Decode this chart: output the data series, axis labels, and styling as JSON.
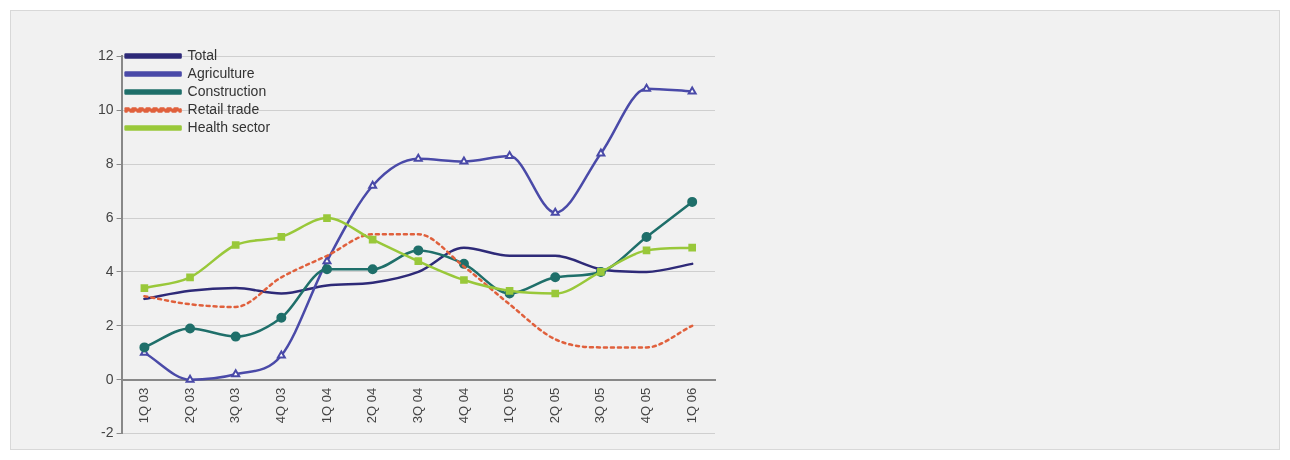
{
  "chart_data": {
    "type": "line",
    "categories": [
      "1Q 03",
      "2Q 03",
      "3Q 03",
      "4Q 03",
      "1Q 04",
      "2Q 04",
      "3Q 04",
      "4Q 04",
      "1Q 05",
      "2Q 05",
      "3Q 05",
      "4Q 05",
      "1Q 06"
    ],
    "series": [
      {
        "name": "Total",
        "color": "#2e2a78",
        "marker": "none",
        "line_style": "solid",
        "values": [
          3.0,
          3.3,
          3.4,
          3.2,
          3.5,
          3.6,
          4.0,
          4.9,
          4.6,
          4.6,
          4.1,
          4.0,
          4.3
        ]
      },
      {
        "name": "Agriculture",
        "color": "#4a4aa8",
        "marker": "triangle",
        "line_style": "solid",
        "values": [
          1.0,
          0.0,
          0.2,
          0.9,
          4.4,
          7.2,
          8.2,
          8.1,
          8.3,
          6.2,
          8.4,
          10.8,
          10.7
        ]
      },
      {
        "name": "Construction",
        "color": "#1f6f6a",
        "marker": "circle",
        "line_style": "solid",
        "values": [
          1.2,
          1.9,
          1.6,
          2.3,
          4.1,
          4.1,
          4.8,
          4.3,
          3.2,
          3.8,
          4.0,
          5.3,
          6.6
        ]
      },
      {
        "name": "Retail trade",
        "color": "#e0603c",
        "marker": "none",
        "line_style": "dotted",
        "values": [
          3.1,
          2.8,
          2.7,
          3.8,
          4.6,
          5.4,
          5.4,
          4.2,
          2.8,
          1.5,
          1.2,
          1.2,
          2.0
        ]
      },
      {
        "name": "Health sector",
        "color": "#99c83a",
        "marker": "square",
        "line_style": "solid",
        "values": [
          3.4,
          3.8,
          5.0,
          5.3,
          6.0,
          5.2,
          4.4,
          3.7,
          3.3,
          3.2,
          4.0,
          4.8,
          4.9
        ]
      }
    ],
    "ylim": [
      -2,
      12
    ],
    "yticks": [
      -2,
      0,
      2,
      4,
      6,
      8,
      10,
      12
    ],
    "grid": "y",
    "legend": "top left"
  }
}
